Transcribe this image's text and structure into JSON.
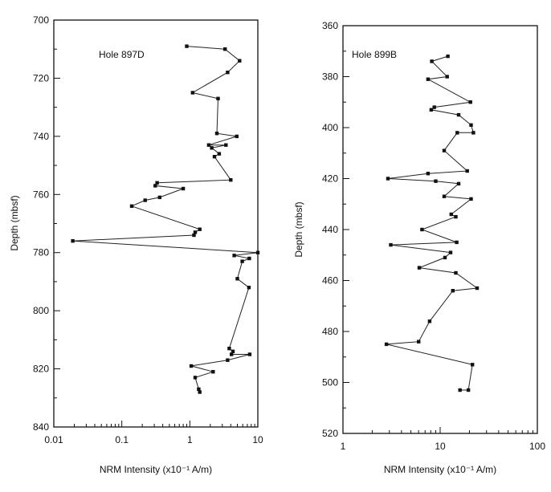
{
  "chart_data": [
    {
      "type": "line",
      "panel_label": "Hole 897D",
      "xlabel": "NRM Intensity (x10⁻¹ A/m)",
      "ylabel": "Depth (mbsf)",
      "x_scale": "log",
      "xlim": [
        0.01,
        10
      ],
      "ylim": [
        700,
        840
      ],
      "y_inverted": true,
      "x_ticks": [
        "0.01",
        "0.1",
        "1",
        "10"
      ],
      "y_ticks": [
        "700",
        "720",
        "740",
        "760",
        "780",
        "800",
        "820",
        "840"
      ],
      "series": [
        {
          "points": [
            [
              0.9,
              709
            ],
            [
              3.3,
              710
            ],
            [
              5.4,
              714
            ],
            [
              3.6,
              718
            ],
            [
              1.1,
              725
            ],
            [
              2.6,
              727
            ],
            [
              2.5,
              739
            ],
            [
              4.9,
              740
            ],
            [
              1.9,
              743
            ],
            [
              3.4,
              743
            ],
            [
              2.1,
              744
            ],
            [
              2.7,
              746
            ],
            [
              2.3,
              747
            ],
            [
              4.0,
              755
            ],
            [
              0.33,
              756
            ],
            [
              0.31,
              757
            ],
            [
              0.8,
              758
            ],
            [
              0.36,
              761
            ],
            [
              0.22,
              762
            ],
            [
              0.14,
              764
            ],
            [
              1.4,
              772
            ],
            [
              1.2,
              773
            ],
            [
              1.15,
              774
            ],
            [
              0.019,
              776
            ],
            [
              10.0,
              780
            ],
            [
              4.5,
              781
            ],
            [
              7.5,
              782
            ],
            [
              5.9,
              783
            ],
            [
              5.0,
              789
            ],
            [
              7.4,
              792
            ],
            [
              3.8,
              813
            ],
            [
              4.3,
              814
            ],
            [
              4.1,
              815
            ],
            [
              7.6,
              815
            ],
            [
              3.6,
              817
            ],
            [
              1.05,
              819
            ],
            [
              2.2,
              821
            ],
            [
              1.2,
              823
            ],
            [
              1.35,
              827
            ],
            [
              1.4,
              828
            ]
          ]
        }
      ]
    },
    {
      "type": "line",
      "panel_label": "Hole 899B",
      "xlabel": "NRM Intensity (x10⁻¹ A/m)",
      "ylabel": "Depth (mbsf)",
      "x_scale": "log",
      "xlim": [
        1,
        100
      ],
      "ylim": [
        360,
        520
      ],
      "y_inverted": true,
      "x_ticks": [
        "1",
        "10",
        "100"
      ],
      "y_ticks": [
        "360",
        "380",
        "400",
        "420",
        "440",
        "460",
        "480",
        "500",
        "520"
      ],
      "series": [
        {
          "points": [
            [
              12.0,
              372
            ],
            [
              8.2,
              374
            ],
            [
              11.8,
              380
            ],
            [
              7.5,
              381
            ],
            [
              20.5,
              390
            ],
            [
              8.7,
              392
            ],
            [
              8.1,
              393
            ],
            [
              15.5,
              395
            ],
            [
              20.8,
              399
            ],
            [
              22.0,
              402
            ],
            [
              15.0,
              402
            ],
            [
              11.0,
              409
            ],
            [
              19.0,
              417
            ],
            [
              7.5,
              418
            ],
            [
              2.9,
              420
            ],
            [
              9.0,
              421
            ],
            [
              15.5,
              422
            ],
            [
              11.0,
              427
            ],
            [
              20.8,
              428
            ],
            [
              13.0,
              434
            ],
            [
              14.5,
              435
            ],
            [
              6.5,
              440
            ],
            [
              14.8,
              445
            ],
            [
              3.1,
              446
            ],
            [
              12.8,
              449
            ],
            [
              11.2,
              451
            ],
            [
              6.1,
              455
            ],
            [
              14.5,
              457
            ],
            [
              24.0,
              463
            ],
            [
              13.5,
              464
            ],
            [
              7.8,
              476
            ],
            [
              6.0,
              484
            ],
            [
              2.8,
              485
            ],
            [
              21.5,
              493
            ],
            [
              19.5,
              503
            ],
            [
              16.0,
              503
            ]
          ]
        }
      ]
    }
  ]
}
